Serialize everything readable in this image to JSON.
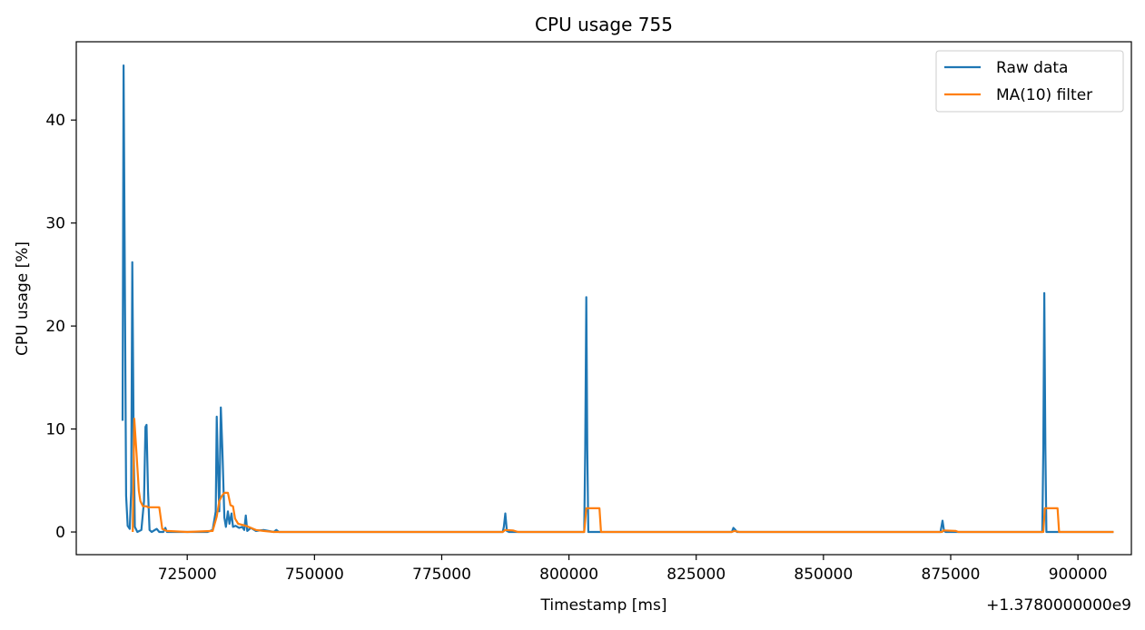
{
  "chart_data": {
    "type": "line",
    "title": "CPU usage 755",
    "xlabel": "Timestamp [ms]",
    "ylabel": "CPU usage [%]",
    "x_offset_label": "+1.3780000000e9",
    "xlim": [
      703200,
      910500
    ],
    "ylim": [
      -2.2,
      47.6
    ],
    "x_ticks": [
      725000,
      750000,
      775000,
      800000,
      825000,
      850000,
      875000,
      900000
    ],
    "x_tick_labels": [
      "725000",
      "750000",
      "775000",
      "800000",
      "825000",
      "850000",
      "875000",
      "900000"
    ],
    "y_ticks": [
      0,
      10,
      20,
      30,
      40
    ],
    "y_tick_labels": [
      "0",
      "10",
      "20",
      "30",
      "40"
    ],
    "grid": false,
    "legend_position": "top-right",
    "series": [
      {
        "name": "Raw data",
        "color": "#1f77b4",
        "points": [
          [
            712300,
            10.8
          ],
          [
            712500,
            45.3
          ],
          [
            712800,
            20
          ],
          [
            713000,
            3.5
          ],
          [
            713300,
            0.6
          ],
          [
            713700,
            0.3
          ],
          [
            714000,
            4
          ],
          [
            714200,
            26.2
          ],
          [
            714500,
            8
          ],
          [
            714700,
            0.5
          ],
          [
            715200,
            0
          ],
          [
            716000,
            0.2
          ],
          [
            716500,
            3
          ],
          [
            716800,
            10.2
          ],
          [
            717000,
            10.4
          ],
          [
            717300,
            4
          ],
          [
            717600,
            0.2
          ],
          [
            718000,
            0
          ],
          [
            719000,
            0.3
          ],
          [
            719500,
            0
          ],
          [
            720300,
            0
          ],
          [
            720700,
            0.4
          ],
          [
            721000,
            0
          ],
          [
            725000,
            0
          ],
          [
            729000,
            0
          ],
          [
            730000,
            0.2
          ],
          [
            730600,
            2
          ],
          [
            730800,
            11.2
          ],
          [
            731000,
            7
          ],
          [
            731300,
            2
          ],
          [
            731600,
            12.1
          ],
          [
            731900,
            8
          ],
          [
            732300,
            1.4
          ],
          [
            732600,
            0.5
          ],
          [
            733000,
            2
          ],
          [
            733300,
            0.8
          ],
          [
            733700,
            1.8
          ],
          [
            734000,
            0.5
          ],
          [
            734500,
            0.6
          ],
          [
            735200,
            0.4
          ],
          [
            735800,
            0.5
          ],
          [
            736200,
            0.2
          ],
          [
            736500,
            1.6
          ],
          [
            736800,
            0.1
          ],
          [
            737500,
            0.4
          ],
          [
            738500,
            0.1
          ],
          [
            740000,
            0.2
          ],
          [
            742000,
            0
          ],
          [
            742500,
            0.2
          ],
          [
            743000,
            0
          ],
          [
            760000,
            0
          ],
          [
            787000,
            0
          ],
          [
            787200,
            0.5
          ],
          [
            787500,
            1.8
          ],
          [
            787800,
            0.1
          ],
          [
            788200,
            0
          ],
          [
            803000,
            0
          ],
          [
            803200,
            8
          ],
          [
            803400,
            22.8
          ],
          [
            803600,
            8
          ],
          [
            803800,
            0
          ],
          [
            832000,
            0
          ],
          [
            832300,
            0.4
          ],
          [
            832700,
            0.2
          ],
          [
            833000,
            0
          ],
          [
            873000,
            0
          ],
          [
            873400,
            1.1
          ],
          [
            873700,
            0.1
          ],
          [
            874000,
            0
          ],
          [
            893000,
            0
          ],
          [
            893200,
            8
          ],
          [
            893400,
            23.2
          ],
          [
            893600,
            8
          ],
          [
            893800,
            0
          ],
          [
            907000,
            0
          ]
        ]
      },
      {
        "name": "MA(10) filter",
        "color": "#ff7f0e",
        "points": [
          [
            714300,
            0
          ],
          [
            714600,
            11
          ],
          [
            715000,
            8
          ],
          [
            715500,
            4
          ],
          [
            715800,
            3
          ],
          [
            716300,
            2.5
          ],
          [
            717000,
            2.5
          ],
          [
            717300,
            2.4
          ],
          [
            719500,
            2.4
          ],
          [
            720100,
            0.3
          ],
          [
            721000,
            0.1
          ],
          [
            725000,
            0
          ],
          [
            730000,
            0.1
          ],
          [
            730800,
            1.5
          ],
          [
            731300,
            3
          ],
          [
            731800,
            3.5
          ],
          [
            732300,
            3.8
          ],
          [
            733000,
            3.8
          ],
          [
            733500,
            2.6
          ],
          [
            734000,
            2.5
          ],
          [
            734400,
            1.3
          ],
          [
            735000,
            0.8
          ],
          [
            736500,
            0.6
          ],
          [
            737500,
            0.4
          ],
          [
            738500,
            0.2
          ],
          [
            740000,
            0.1
          ],
          [
            742000,
            0
          ],
          [
            787000,
            0
          ],
          [
            787500,
            0.2
          ],
          [
            789000,
            0.15
          ],
          [
            790000,
            0
          ],
          [
            803000,
            0
          ],
          [
            803400,
            2.3
          ],
          [
            806000,
            2.3
          ],
          [
            806300,
            0
          ],
          [
            832000,
            0
          ],
          [
            832500,
            0.1
          ],
          [
            833500,
            0
          ],
          [
            873300,
            0
          ],
          [
            873600,
            0.15
          ],
          [
            876000,
            0.1
          ],
          [
            876500,
            0
          ],
          [
            893200,
            0
          ],
          [
            893500,
            2.3
          ],
          [
            896000,
            2.3
          ],
          [
            896300,
            0
          ],
          [
            907000,
            0
          ]
        ]
      }
    ]
  }
}
